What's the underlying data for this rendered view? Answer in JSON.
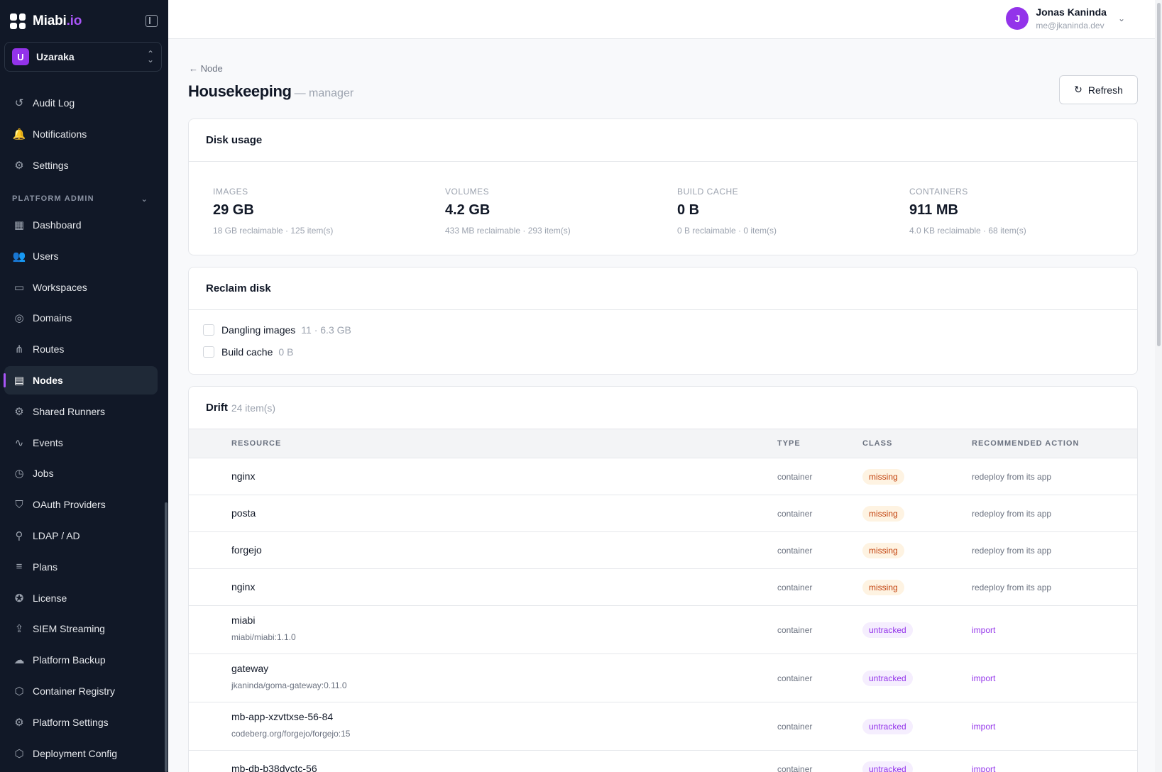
{
  "brand": {
    "name": "Miabi",
    "suffix": ".io"
  },
  "workspace": {
    "badge": "U",
    "name": "Uzaraka"
  },
  "sidebar": {
    "top_items": [
      {
        "label": "Audit Log",
        "icon": "history-icon"
      },
      {
        "label": "Notifications",
        "icon": "bell-icon"
      },
      {
        "label": "Settings",
        "icon": "gear-icon"
      }
    ],
    "section_label": "PLATFORM ADMIN",
    "admin_items": [
      {
        "label": "Dashboard",
        "icon": "dashboard-icon"
      },
      {
        "label": "Users",
        "icon": "users-icon"
      },
      {
        "label": "Workspaces",
        "icon": "briefcase-icon"
      },
      {
        "label": "Domains",
        "icon": "globe-icon"
      },
      {
        "label": "Routes",
        "icon": "routes-icon"
      },
      {
        "label": "Nodes",
        "icon": "server-icon",
        "active": true
      },
      {
        "label": "Shared Runners",
        "icon": "gear-icon"
      },
      {
        "label": "Events",
        "icon": "activity-icon"
      },
      {
        "label": "Jobs",
        "icon": "clock-icon"
      },
      {
        "label": "OAuth Providers",
        "icon": "shield-icon"
      },
      {
        "label": "LDAP / AD",
        "icon": "ldap-icon"
      },
      {
        "label": "Plans",
        "icon": "sliders-icon"
      },
      {
        "label": "License",
        "icon": "badge-icon"
      },
      {
        "label": "SIEM Streaming",
        "icon": "export-icon"
      },
      {
        "label": "Platform Backup",
        "icon": "cloud-upload-icon"
      },
      {
        "label": "Container Registry",
        "icon": "box-icon"
      },
      {
        "label": "Platform Settings",
        "icon": "gear-icon"
      },
      {
        "label": "Deployment Config",
        "icon": "box-icon"
      }
    ]
  },
  "user": {
    "initial": "J",
    "name": "Jonas Kaninda",
    "email": "me@jkaninda.dev"
  },
  "page": {
    "back_label": "Node",
    "title": "Housekeeping",
    "subtitle": "— manager",
    "refresh_label": "Refresh"
  },
  "disk_usage": {
    "title": "Disk usage",
    "stats": [
      {
        "label": "IMAGES",
        "value": "29 GB",
        "note": "18 GB reclaimable · 125 item(s)"
      },
      {
        "label": "VOLUMES",
        "value": "4.2 GB",
        "note": "433 MB reclaimable · 293 item(s)"
      },
      {
        "label": "BUILD CACHE",
        "value": "0 B",
        "note": "0 B reclaimable · 0 item(s)"
      },
      {
        "label": "CONTAINERS",
        "value": "911 MB",
        "note": "4.0 KB reclaimable · 68 item(s)"
      }
    ]
  },
  "reclaim": {
    "title": "Reclaim disk",
    "options": [
      {
        "label": "Dangling images",
        "detail": "11 · 6.3 GB"
      },
      {
        "label": "Build cache",
        "detail": "0 B"
      }
    ]
  },
  "drift": {
    "title": "Drift",
    "count": "24 item(s)",
    "columns": [
      "RESOURCE",
      "TYPE",
      "CLASS",
      "RECOMMENDED ACTION"
    ],
    "rows": [
      {
        "name": "nginx",
        "sub": "",
        "type": "container",
        "class": "missing",
        "action": "redeploy from its app"
      },
      {
        "name": "posta",
        "sub": "",
        "type": "container",
        "class": "missing",
        "action": "redeploy from its app"
      },
      {
        "name": "forgejo",
        "sub": "",
        "type": "container",
        "class": "missing",
        "action": "redeploy from its app"
      },
      {
        "name": "nginx",
        "sub": "",
        "type": "container",
        "class": "missing",
        "action": "redeploy from its app"
      },
      {
        "name": "miabi",
        "sub": "miabi/miabi:1.1.0",
        "type": "container",
        "class": "untracked",
        "action": "import"
      },
      {
        "name": "gateway",
        "sub": "jkaninda/goma-gateway:0.11.0",
        "type": "container",
        "class": "untracked",
        "action": "import"
      },
      {
        "name": "mb-app-xzvttxse-56-84",
        "sub": "codeberg.org/forgejo/forgejo:15",
        "type": "container",
        "class": "untracked",
        "action": "import"
      },
      {
        "name": "mb-db-b38dvctc-56",
        "sub": "",
        "type": "container",
        "class": "untracked",
        "action": "import"
      }
    ]
  },
  "colors": {
    "accent": "#9333ea",
    "sidebar_bg": "#111827",
    "missing": "#c2410c",
    "untracked": "#9333ea"
  }
}
